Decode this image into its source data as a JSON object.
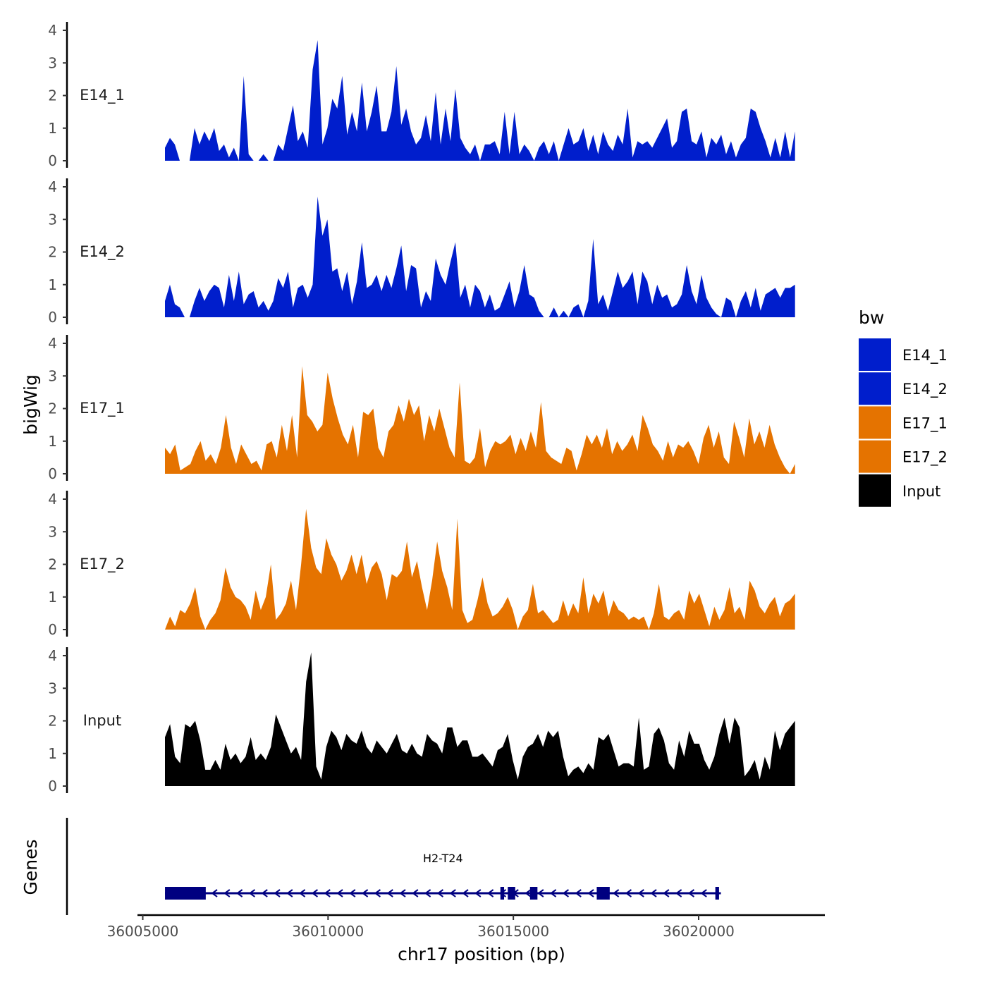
{
  "chart_data": {
    "type": "area",
    "title": "",
    "xlabel": "chr17 position (bp)",
    "ylabel": "bigWig",
    "x_range": [
      36005600,
      36022600
    ],
    "x_axis_limits": [
      36005000,
      36023300
    ],
    "x_ticks": [
      36005000,
      36010000,
      36015000,
      36020000
    ],
    "x_tick_labels": [
      "36005000",
      "36010000",
      "36015000",
      "36020000"
    ],
    "ylim": [
      0,
      4.2
    ],
    "y_ticks": [
      0,
      1,
      2,
      3,
      4
    ],
    "y_tick_labels": [
      "0",
      "1",
      "2",
      "3",
      "4"
    ],
    "series": [
      {
        "name": "E14_1",
        "color": "#001ECC",
        "values": [
          0.4,
          0.7,
          0.5,
          0,
          0,
          0,
          1.0,
          0.5,
          0.9,
          0.6,
          1.0,
          0.3,
          0.5,
          0.1,
          0.4,
          0,
          2.6,
          0.2,
          0,
          0,
          0.2,
          0,
          0,
          0.5,
          0.3,
          1.0,
          1.7,
          0.6,
          0.9,
          0.4,
          2.8,
          3.7,
          0.5,
          1.0,
          1.9,
          1.6,
          2.6,
          0.8,
          1.5,
          0.9,
          2.4,
          0.9,
          1.5,
          2.3,
          0.9,
          0.9,
          1.5,
          2.9,
          1.1,
          1.6,
          0.9,
          0.5,
          0.7,
          1.4,
          0.6,
          2.1,
          0.5,
          1.6,
          0.6,
          2.2,
          0.7,
          0.4,
          0.2,
          0.5,
          0,
          0.5,
          0.5,
          0.6,
          0.2,
          1.5,
          0.2,
          1.5,
          0.2,
          0.5,
          0.3,
          0,
          0.4,
          0.6,
          0.2,
          0.6,
          0,
          0.5,
          1.0,
          0.5,
          0.6,
          1.0,
          0.3,
          0.8,
          0.2,
          0.9,
          0.5,
          0.3,
          0.8,
          0.5,
          1.6,
          0.1,
          0.6,
          0.5,
          0.6,
          0.4,
          0.7,
          1.0,
          1.3,
          0.4,
          0.6,
          1.5,
          1.6,
          0.6,
          0.5,
          0.9,
          0.1,
          0.7,
          0.5,
          0.8,
          0.2,
          0.6,
          0.1,
          0.5,
          0.7,
          1.6,
          1.5,
          1.0,
          0.6,
          0.1,
          0.7,
          0.1,
          0.9,
          0.1,
          0.9
        ]
      },
      {
        "name": "E14_2",
        "color": "#001ECC",
        "values": [
          0.5,
          1.0,
          0.4,
          0.3,
          0,
          0,
          0.5,
          0.9,
          0.5,
          0.8,
          1.0,
          0.9,
          0.3,
          1.3,
          0.5,
          1.4,
          0.4,
          0.7,
          0.8,
          0.3,
          0.5,
          0.2,
          0.5,
          1.2,
          0.9,
          1.4,
          0.3,
          0.9,
          1.0,
          0.6,
          1.0,
          3.7,
          2.5,
          3.0,
          1.4,
          1.5,
          0.8,
          1.4,
          0.4,
          1.1,
          2.3,
          0.9,
          1.0,
          1.3,
          0.8,
          1.3,
          0.9,
          1.5,
          2.2,
          0.8,
          1.6,
          1.5,
          0.3,
          0.8,
          0.5,
          1.8,
          1.3,
          1.0,
          1.7,
          2.3,
          0.6,
          1.0,
          0.3,
          1.0,
          0.8,
          0.3,
          0.7,
          0.2,
          0.3,
          0.7,
          1.1,
          0.3,
          0.8,
          1.6,
          0.7,
          0.6,
          0.2,
          0,
          0,
          0.3,
          0,
          0.2,
          0,
          0.3,
          0.4,
          0,
          0.5,
          2.4,
          0.4,
          0.7,
          0.2,
          0.8,
          1.4,
          0.9,
          1.1,
          1.4,
          0.4,
          1.4,
          1.1,
          0.4,
          1.0,
          0.6,
          0.7,
          0.3,
          0.4,
          0.7,
          1.6,
          0.8,
          0.4,
          1.3,
          0.6,
          0.3,
          0.1,
          0,
          0.6,
          0.5,
          0,
          0.5,
          0.8,
          0.3,
          0.9,
          0.2,
          0.7,
          0.8,
          0.9,
          0.6,
          0.9,
          0.9,
          1.0
        ]
      },
      {
        "name": "E17_1",
        "color": "#E57300",
        "values": [
          0.8,
          0.6,
          0.9,
          0.1,
          0.2,
          0.3,
          0.7,
          1.0,
          0.4,
          0.6,
          0.3,
          0.8,
          1.8,
          0.8,
          0.3,
          0.9,
          0.6,
          0.3,
          0.4,
          0.1,
          0.9,
          1.0,
          0.5,
          1.5,
          0.7,
          1.8,
          0.5,
          3.3,
          1.8,
          1.6,
          1.3,
          1.5,
          3.1,
          2.3,
          1.7,
          1.2,
          0.9,
          1.5,
          0.5,
          1.9,
          1.8,
          2.0,
          0.8,
          0.5,
          1.3,
          1.5,
          2.1,
          1.6,
          2.3,
          1.8,
          2.1,
          1.0,
          1.8,
          1.3,
          2.0,
          1.4,
          0.8,
          0.5,
          2.8,
          0.4,
          0.3,
          0.5,
          1.4,
          0.2,
          0.7,
          1.0,
          0.9,
          1.0,
          1.2,
          0.6,
          1.1,
          0.7,
          1.3,
          0.8,
          2.2,
          0.7,
          0.5,
          0.4,
          0.3,
          0.8,
          0.7,
          0.1,
          0.6,
          1.2,
          0.9,
          1.2,
          0.8,
          1.4,
          0.6,
          1.0,
          0.7,
          0.9,
          1.2,
          0.7,
          1.8,
          1.4,
          0.9,
          0.7,
          0.4,
          1.0,
          0.5,
          0.9,
          0.8,
          1.0,
          0.7,
          0.3,
          1.1,
          1.5,
          0.8,
          1.3,
          0.5,
          0.3,
          1.6,
          1.1,
          0.5,
          1.7,
          0.9,
          1.3,
          0.8,
          1.5,
          0.9,
          0.5,
          0.2,
          0,
          0.3
        ]
      },
      {
        "name": "E17_2",
        "color": "#E57300",
        "values": [
          0,
          0.4,
          0.1,
          0.6,
          0.5,
          0.8,
          1.3,
          0.4,
          0,
          0.3,
          0.5,
          0.9,
          1.9,
          1.3,
          1.0,
          0.9,
          0.7,
          0.3,
          1.2,
          0.6,
          1.0,
          2.0,
          0.3,
          0.5,
          0.8,
          1.5,
          0.6,
          2.0,
          3.7,
          2.5,
          1.9,
          1.7,
          2.8,
          2.3,
          2.0,
          1.5,
          1.8,
          2.3,
          1.7,
          2.3,
          1.4,
          1.9,
          2.1,
          1.7,
          0.9,
          1.7,
          1.6,
          1.8,
          2.7,
          1.6,
          2.1,
          1.3,
          0.6,
          1.5,
          2.7,
          1.8,
          1.3,
          0.6,
          3.4,
          0.6,
          0.2,
          0.3,
          0.9,
          1.6,
          0.8,
          0.4,
          0.5,
          0.7,
          1.0,
          0.6,
          0,
          0.4,
          0.6,
          1.4,
          0.5,
          0.6,
          0.4,
          0.2,
          0.3,
          0.9,
          0.4,
          0.8,
          0.5,
          1.6,
          0.5,
          1.1,
          0.8,
          1.2,
          0.4,
          0.9,
          0.6,
          0.5,
          0.3,
          0.4,
          0.3,
          0.4,
          0,
          0.5,
          1.4,
          0.4,
          0.3,
          0.5,
          0.6,
          0.3,
          1.2,
          0.8,
          1.1,
          0.6,
          0.1,
          0.7,
          0.3,
          0.6,
          1.3,
          0.5,
          0.7,
          0.3,
          1.5,
          1.2,
          0.7,
          0.5,
          0.8,
          1.0,
          0.4,
          0.8,
          0.9,
          1.1
        ]
      },
      {
        "name": "Input",
        "color": "#000000",
        "values": [
          1.5,
          1.9,
          0.9,
          0.7,
          1.9,
          1.8,
          2.0,
          1.4,
          0.5,
          0.5,
          0.8,
          0.5,
          1.3,
          0.8,
          1.0,
          0.7,
          0.9,
          1.5,
          0.8,
          1.0,
          0.8,
          1.2,
          2.2,
          1.8,
          1.4,
          1.0,
          1.2,
          0.8,
          3.2,
          4.1,
          0.6,
          0.2,
          1.2,
          1.7,
          1.5,
          1.1,
          1.6,
          1.4,
          1.3,
          1.7,
          1.2,
          1.0,
          1.4,
          1.2,
          1.0,
          1.3,
          1.6,
          1.1,
          1.0,
          1.3,
          1.0,
          0.9,
          1.6,
          1.4,
          1.3,
          1.0,
          1.8,
          1.8,
          1.2,
          1.4,
          1.4,
          0.9,
          0.9,
          1.0,
          0.8,
          0.6,
          1.1,
          1.2,
          1.6,
          0.8,
          0.2,
          0.9,
          1.2,
          1.3,
          1.6,
          1.2,
          1.7,
          1.5,
          1.7,
          0.9,
          0.3,
          0.5,
          0.6,
          0.4,
          0.7,
          0.5,
          1.5,
          1.4,
          1.6,
          1.1,
          0.6,
          0.7,
          0.7,
          0.6,
          2.1,
          0.5,
          0.6,
          1.6,
          1.8,
          1.4,
          0.7,
          0.5,
          1.4,
          0.9,
          1.7,
          1.3,
          1.3,
          0.8,
          0.5,
          0.9,
          1.6,
          2.1,
          1.3,
          2.1,
          1.8,
          0.3,
          0.5,
          0.8,
          0.2,
          0.9,
          0.5,
          1.7,
          1.1,
          1.6,
          1.8,
          2.0
        ]
      }
    ],
    "legend": {
      "title": "bw",
      "position": "right",
      "entries": [
        {
          "label": "E14_1",
          "color": "#001ECC"
        },
        {
          "label": "E14_2",
          "color": "#001ECC"
        },
        {
          "label": "E17_1",
          "color": "#E57300"
        },
        {
          "label": "E17_2",
          "color": "#E57300"
        },
        {
          "label": "Input",
          "color": "#000000"
        }
      ]
    },
    "genes_track": {
      "ylabel": "Genes",
      "gene": {
        "name": "H2-T24",
        "start": 36005600,
        "end": 36020600,
        "strand": "-",
        "color": "#000080",
        "exons": [
          [
            36005600,
            36006700
          ],
          [
            36014650,
            36014750
          ],
          [
            36014850,
            36015050
          ],
          [
            36015450,
            36015650
          ],
          [
            36017250,
            36017600
          ],
          [
            36020450,
            36020550
          ]
        ]
      }
    }
  }
}
